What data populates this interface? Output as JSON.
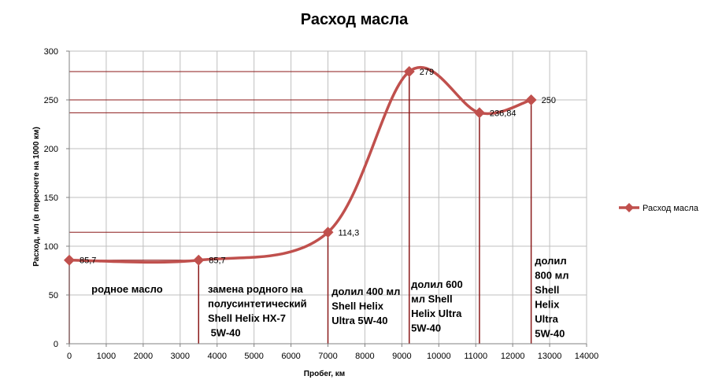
{
  "chart_data": {
    "type": "line",
    "title": "Расход масла",
    "xlabel": "Пробег, км",
    "ylabel": "Расход, мл (в пересчете на 1000 км)",
    "xlim": [
      0,
      14000
    ],
    "ylim": [
      0,
      300
    ],
    "x_ticks": [
      "0",
      "1000",
      "2000",
      "3000",
      "4000",
      "5000",
      "6000",
      "7000",
      "8000",
      "9000",
      "10000",
      "11000",
      "12000",
      "13000",
      "14000"
    ],
    "y_ticks": [
      "0",
      "50",
      "100",
      "150",
      "200",
      "250",
      "300"
    ],
    "grid": true,
    "smooth": true,
    "legend_position": "right",
    "series": [
      {
        "name": "Расход масла",
        "color": "#c0504d",
        "x": [
          0,
          3500,
          7000,
          9200,
          11100,
          12500
        ],
        "y": [
          85.7,
          85.7,
          114.3,
          279,
          236.84,
          250
        ],
        "labels": [
          "85,7",
          "85,7",
          "114,3",
          "279",
          "236,84",
          "250"
        ]
      }
    ],
    "annotations": [
      {
        "x": 600,
        "lines": [
          "родное масло"
        ]
      },
      {
        "x": 3750,
        "lines": [
          "замена родного на",
          "полусинтетический",
          "Shell Helix HX-7",
          " 5W-40"
        ]
      },
      {
        "x": 7100,
        "lines": [
          "долил 400 мл",
          "Shell Helix",
          "Ultra 5W-40"
        ]
      },
      {
        "x": 9250,
        "lines": [
          "долил 600",
          "мл Shell",
          "Helix Ultra",
          "5W-40"
        ]
      },
      {
        "x": 12600,
        "lines": [
          "долил",
          "800 мл",
          "Shell",
          "Helix",
          "Ultra",
          "5W-40"
        ]
      }
    ]
  }
}
